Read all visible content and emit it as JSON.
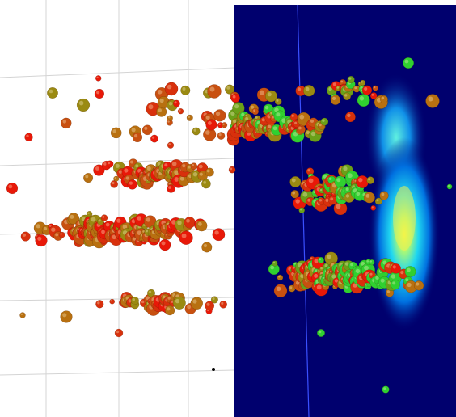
{
  "scene": {
    "kind": "3d-particle-scatter",
    "background_color": "#ffffff",
    "grid_color": "#d4d4d4",
    "density_plane": {
      "colormap": [
        "#00006e",
        "#0018b0",
        "#0070e0",
        "#20d8f0",
        "#a8f878",
        "#f8f840"
      ],
      "axis_line_color": "#3a50ff"
    },
    "particle_colors": [
      "#e81808",
      "#d8300c",
      "#c85010",
      "#b87010",
      "#9a8a12",
      "#6aa018",
      "#30d030"
    ],
    "particles_on_left_colors": [
      "#e81808",
      "#d8300c",
      "#c85010",
      "#b87010",
      "#9a8a12"
    ],
    "cursor_marker_color": "#000000"
  }
}
